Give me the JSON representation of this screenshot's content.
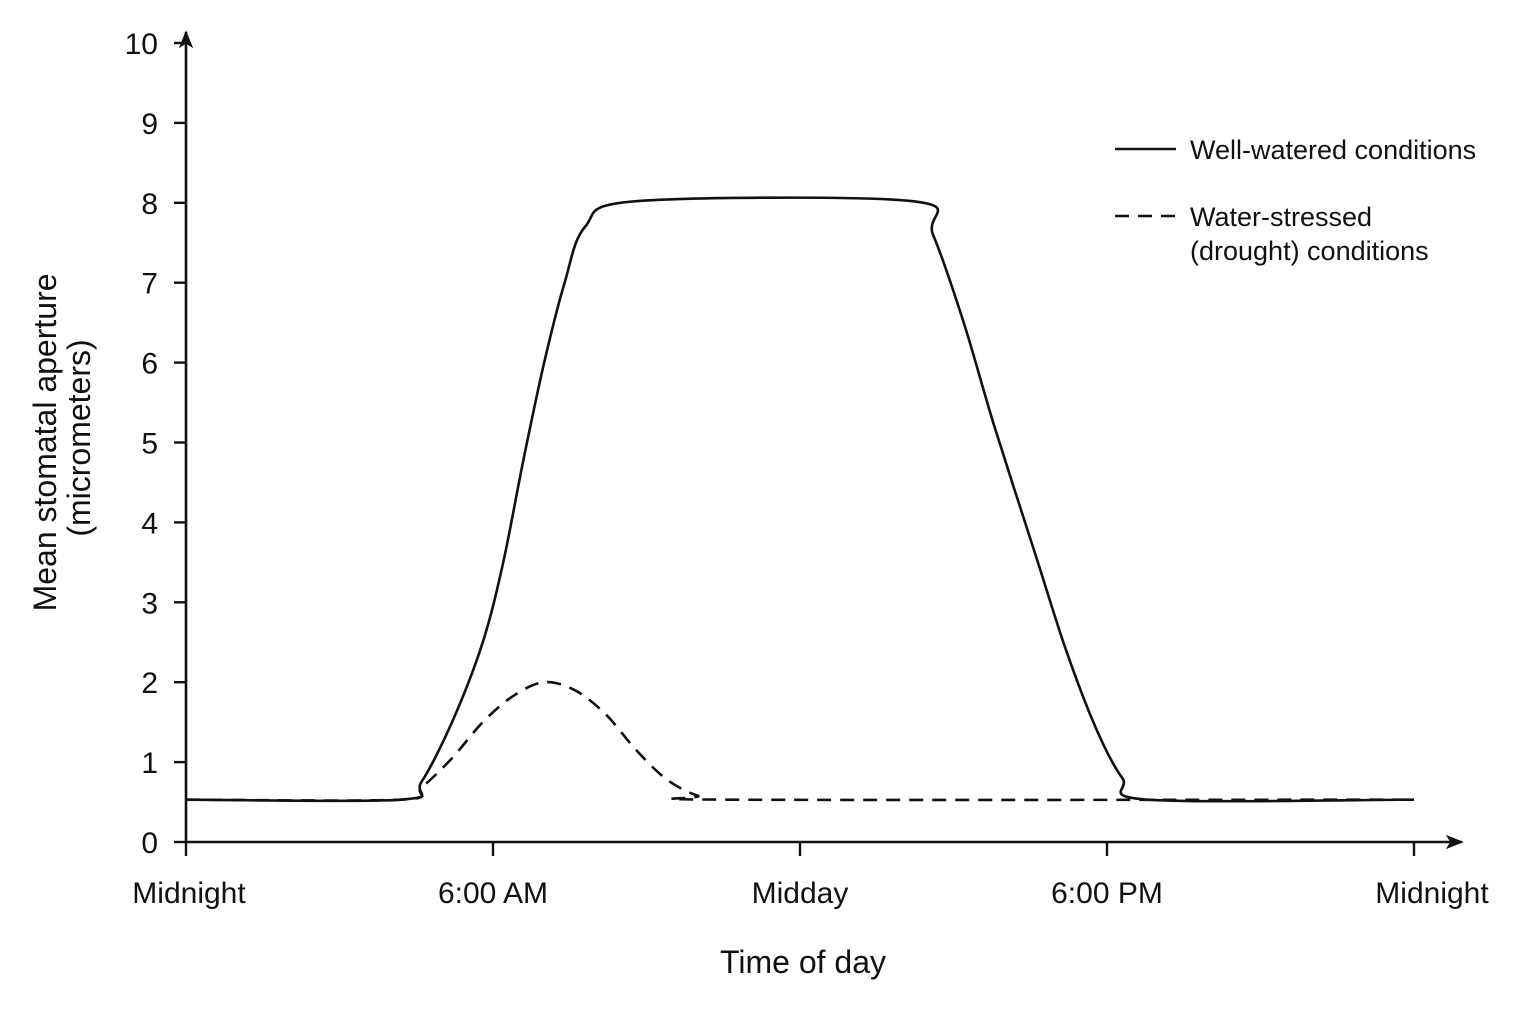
{
  "chart_data": {
    "type": "line",
    "xlabel": "Time of day",
    "ylabel": [
      "Mean stomatal aperture",
      "(micrometers)"
    ],
    "x_unit": "hours after midnight",
    "xlim": [
      0,
      24
    ],
    "ylim": [
      0,
      10
    ],
    "x_ticks": [
      {
        "value": 0,
        "label": "Midnight"
      },
      {
        "value": 6,
        "label": "6:00 AM"
      },
      {
        "value": 12,
        "label": "Midday"
      },
      {
        "value": 18,
        "label": "6:00 PM"
      },
      {
        "value": 24,
        "label": "Midnight"
      }
    ],
    "y_ticks": [
      0,
      1,
      2,
      3,
      4,
      5,
      6,
      7,
      8,
      9,
      10
    ],
    "grid": false,
    "legend_position": "top-right",
    "series": [
      {
        "name": "Well-watered conditions",
        "style": "solid",
        "color": "#111111",
        "points": [
          [
            0.0,
            0.53
          ],
          [
            4.2,
            0.53
          ],
          [
            4.6,
            0.75
          ],
          [
            5.2,
            1.5
          ],
          [
            5.8,
            2.5
          ],
          [
            6.2,
            3.5
          ],
          [
            6.6,
            4.8
          ],
          [
            7.0,
            6.0
          ],
          [
            7.4,
            7.0
          ],
          [
            7.8,
            7.7
          ],
          [
            8.8,
            8.02
          ],
          [
            14.2,
            8.02
          ],
          [
            14.6,
            7.6
          ],
          [
            15.2,
            6.5
          ],
          [
            15.8,
            5.2
          ],
          [
            16.6,
            3.6
          ],
          [
            17.2,
            2.4
          ],
          [
            17.8,
            1.4
          ],
          [
            18.3,
            0.8
          ],
          [
            18.8,
            0.53
          ],
          [
            24.0,
            0.53
          ]
        ]
      },
      {
        "name": "Water-stressed\n(drought) conditions",
        "style": "dashed",
        "color": "#111111",
        "points": [
          [
            0.0,
            0.53
          ],
          [
            4.2,
            0.53
          ],
          [
            4.6,
            0.68
          ],
          [
            5.2,
            1.05
          ],
          [
            5.8,
            1.5
          ],
          [
            6.4,
            1.83
          ],
          [
            7.0,
            2.0
          ],
          [
            7.6,
            1.9
          ],
          [
            8.2,
            1.6
          ],
          [
            8.8,
            1.15
          ],
          [
            9.4,
            0.78
          ],
          [
            10.0,
            0.58
          ],
          [
            10.6,
            0.53
          ],
          [
            24.0,
            0.53
          ]
        ]
      }
    ]
  }
}
